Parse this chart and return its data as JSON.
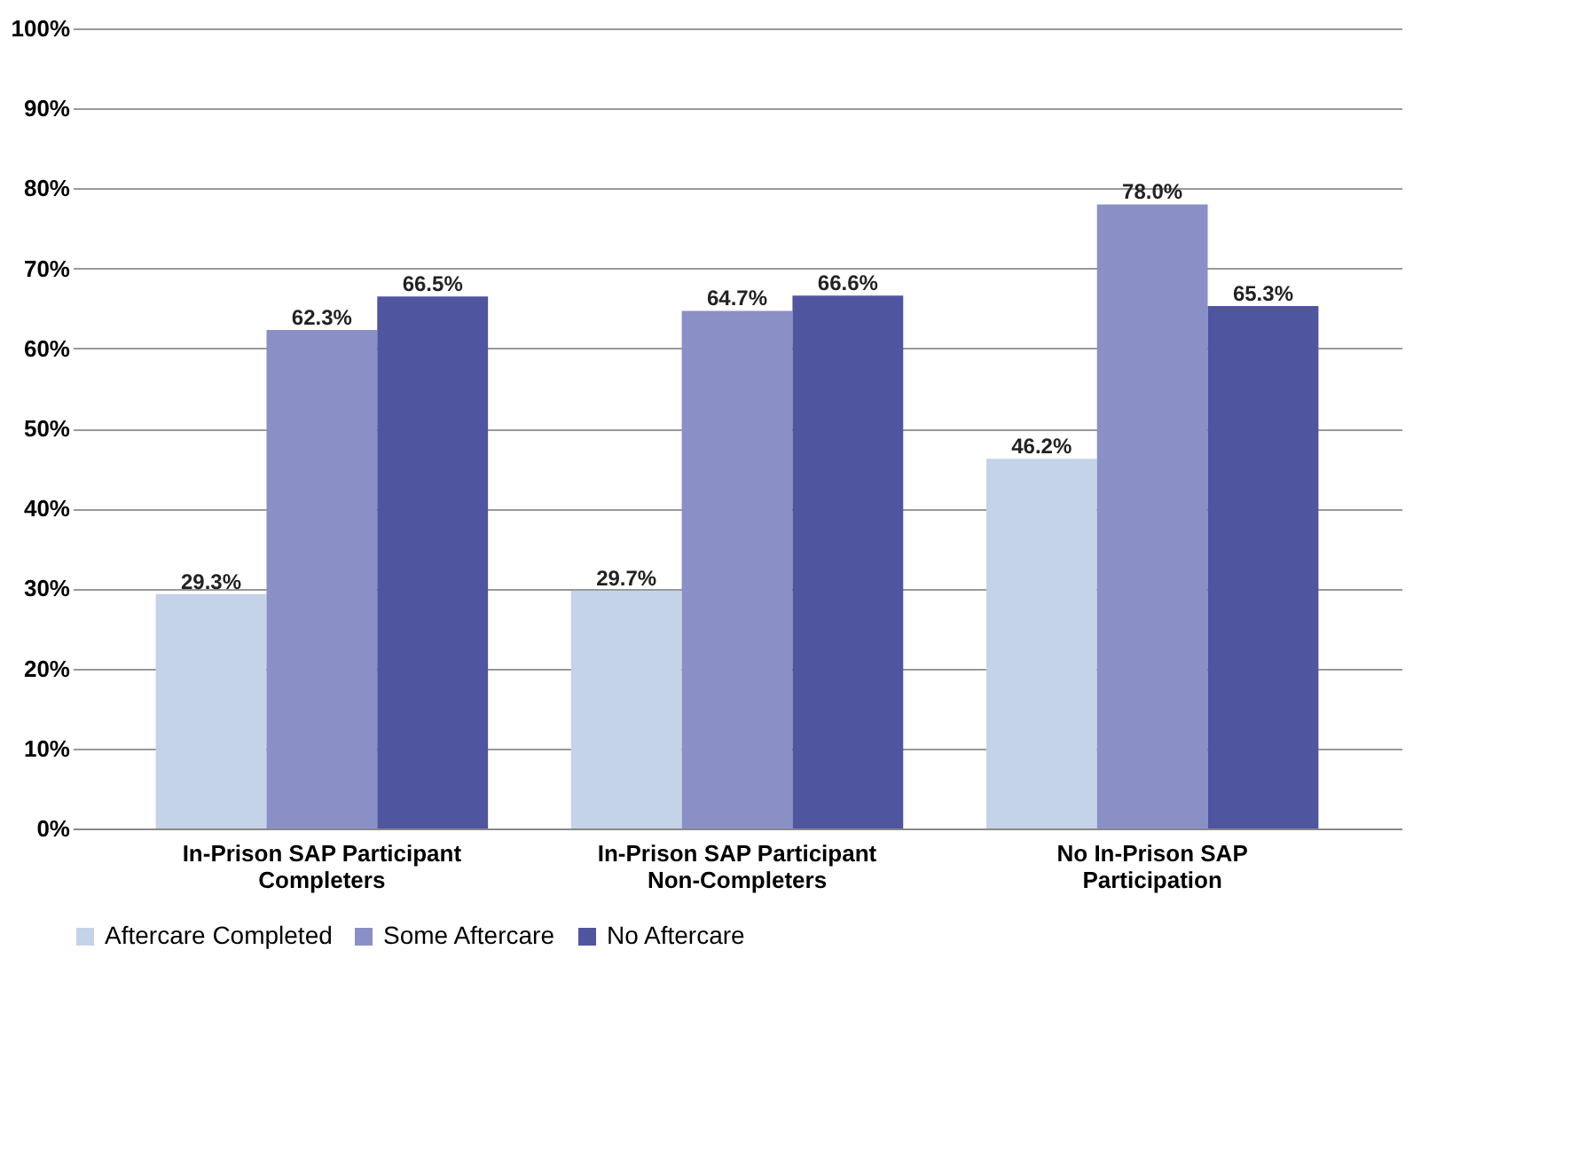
{
  "chart_data": {
    "type": "bar",
    "categories": [
      "In-Prison SAP Participant Completers",
      "In-Prison SAP Participant Non-Completers",
      "No In-Prison SAP Participation"
    ],
    "series": [
      {
        "name": "Aftercare Completed",
        "color": "#c5d3e8",
        "values": [
          29.3,
          29.7,
          46.2
        ],
        "value_labels": [
          "29.3%",
          "29.7%",
          "46.2%"
        ]
      },
      {
        "name": "Some Aftercare",
        "color": "#8a90c6",
        "values": [
          62.3,
          64.7,
          78.0
        ],
        "value_labels": [
          "62.3%",
          "64.7%",
          "78.0%"
        ]
      },
      {
        "name": "No Aftercare",
        "color": "#4f559f",
        "values": [
          66.5,
          66.6,
          65.3
        ],
        "value_labels": [
          "66.5%",
          "66.6%",
          "65.3%"
        ]
      }
    ],
    "ylim": [
      0,
      100
    ],
    "yticks": [
      {
        "value": 0,
        "label": "0%"
      },
      {
        "value": 10,
        "label": "10%"
      },
      {
        "value": 20,
        "label": "20%"
      },
      {
        "value": 30,
        "label": "30%"
      },
      {
        "value": 40,
        "label": "40%"
      },
      {
        "value": 50,
        "label": "50%"
      },
      {
        "value": 60,
        "label": "60%"
      },
      {
        "value": 70,
        "label": "70%"
      },
      {
        "value": 80,
        "label": "80%"
      },
      {
        "value": 90,
        "label": "90%"
      },
      {
        "value": 100,
        "label": "100%"
      }
    ],
    "grid": "y",
    "legend": "bottom"
  }
}
